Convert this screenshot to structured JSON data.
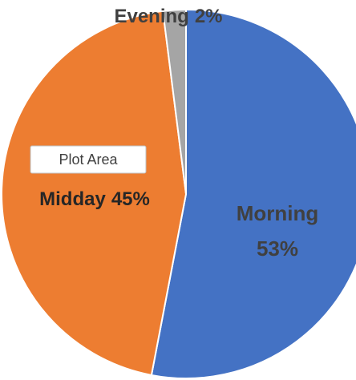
{
  "chart_data": {
    "type": "pie",
    "categories": [
      "Morning",
      "Midday",
      "Evening"
    ],
    "values": [
      53,
      45,
      2
    ],
    "value_labels": [
      "53%",
      "45%",
      "2%"
    ],
    "colors": [
      "#4472c4",
      "#ed7d31",
      "#a5a5a5"
    ],
    "tooltip": "Plot Area"
  }
}
